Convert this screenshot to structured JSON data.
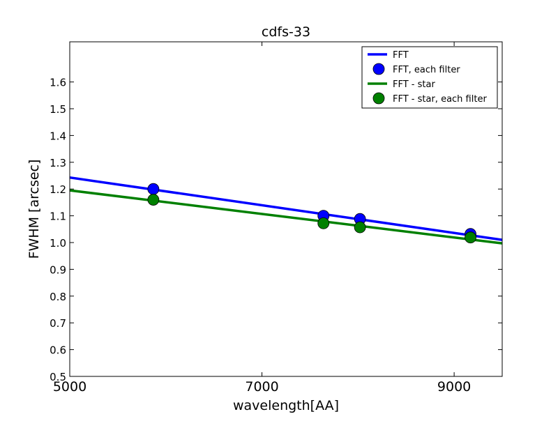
{
  "chart_data": {
    "type": "line",
    "title": "cdfs-33",
    "xlabel": "wavelength[AA]",
    "ylabel": "FWHM [arcsec]",
    "xlim": [
      5000,
      9500
    ],
    "ylim": [
      0.5,
      1.75
    ],
    "x_ticks": [
      5000,
      7000,
      9000
    ],
    "x_tick_labels": [
      "5000",
      "7000",
      "9000"
    ],
    "y_ticks": [
      0.5,
      0.6,
      0.7,
      0.8,
      0.9,
      1.0,
      1.1,
      1.2,
      1.3,
      1.4,
      1.5,
      1.6
    ],
    "y_tick_labels": [
      "0.5",
      "0.6",
      "0.7",
      "0.8",
      "0.9",
      "1.0",
      "1.1",
      "1.2",
      "1.3",
      "1.4",
      "1.5",
      "1.6"
    ],
    "grid": false,
    "legend_position": "top-right",
    "series": [
      {
        "name": "FFT",
        "kind": "line",
        "color": "#0000ff",
        "x": [
          5000,
          9500
        ],
        "y": [
          1.243,
          1.01
        ]
      },
      {
        "name": "FFT, each filter",
        "kind": "marker",
        "color": "#0000ff",
        "x": [
          5870,
          7640,
          8020,
          9170
        ],
        "y": [
          1.2,
          1.1,
          1.088,
          1.032
        ]
      },
      {
        "name": "FFT - star",
        "kind": "line",
        "color": "#008000",
        "x": [
          5000,
          9500
        ],
        "y": [
          1.195,
          0.997
        ]
      },
      {
        "name": "FFT - star, each filter",
        "kind": "marker",
        "color": "#008000",
        "x": [
          5870,
          7640,
          8020,
          9170
        ],
        "y": [
          1.16,
          1.072,
          1.057,
          1.019
        ]
      }
    ]
  }
}
